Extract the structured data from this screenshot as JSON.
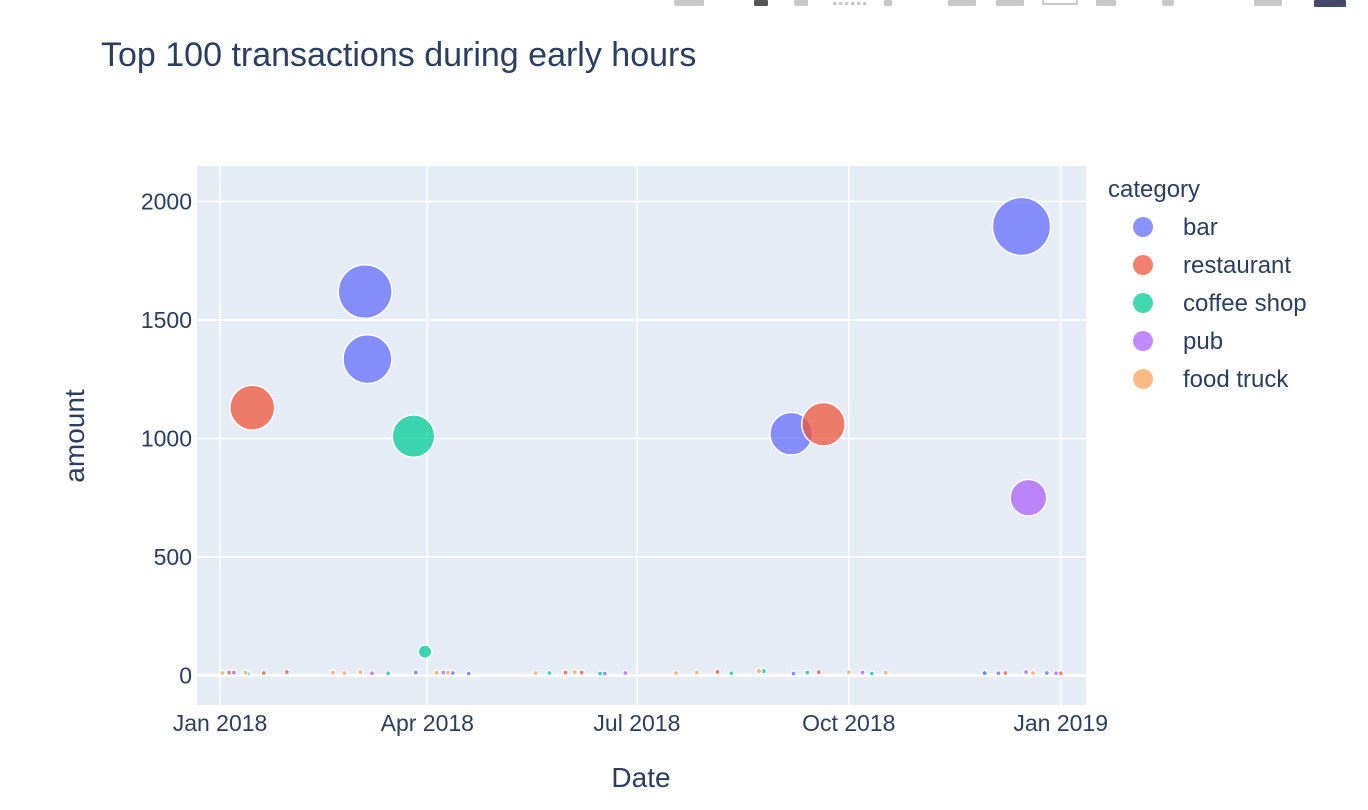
{
  "modebar": {
    "buttons": [
      "camera-icon",
      "zoom-icon",
      "pan-icon",
      "box-select-icon",
      "lasso-icon",
      "zoom-in-icon",
      "zoom-out-icon",
      "autoscale-icon",
      "reset-axes-icon",
      "spike-lines-icon",
      "hover-closest-icon",
      "hover-compare-icon",
      "plotly-logo-icon"
    ]
  },
  "colors": {
    "plot_bg": "#e5ecf6",
    "grid": "#ffffff",
    "text": "#2a3f5f",
    "bar": "#636efa",
    "restaurant": "#ef553b",
    "coffee shop": "#00cc96",
    "pub": "#ab63fa",
    "food truck": "#ffa15a"
  },
  "chart_data": {
    "type": "scatter",
    "title": "Top 100 transactions during early hours",
    "xlabel": "Date",
    "ylabel": "amount",
    "x_ticks": [
      "Jan 2018",
      "Apr 2018",
      "Jul 2018",
      "Oct 2018",
      "Jan 2019"
    ],
    "y_ticks": [
      0,
      500,
      1000,
      1500,
      2000
    ],
    "xlim": [
      "2017-12-22",
      "2019-01-12"
    ],
    "ylim": [
      -125,
      2150
    ],
    "grid": true,
    "legend": {
      "title": "category",
      "placement": "right"
    },
    "marker_size": "proportional to amount",
    "series": [
      {
        "name": "bar",
        "color": "#636efa",
        "points": [
          {
            "x": "2018-03-05",
            "y": 1620
          },
          {
            "x": "2018-03-06",
            "y": 1335
          },
          {
            "x": "2018-09-06",
            "y": 1020
          },
          {
            "x": "2018-12-15",
            "y": 1895
          },
          {
            "x": "2018-03-27",
            "y": 12
          },
          {
            "x": "2018-04-12",
            "y": 10
          },
          {
            "x": "2018-04-19",
            "y": 8
          },
          {
            "x": "2018-06-17",
            "y": 8
          },
          {
            "x": "2018-09-07",
            "y": 8
          },
          {
            "x": "2018-11-29",
            "y": 10
          },
          {
            "x": "2018-12-05",
            "y": 9
          },
          {
            "x": "2018-12-26",
            "y": 10
          }
        ]
      },
      {
        "name": "restaurant",
        "color": "#ef553b",
        "points": [
          {
            "x": "2018-01-15",
            "y": 1130
          },
          {
            "x": "2018-09-20",
            "y": 1060
          },
          {
            "x": "2018-01-05",
            "y": 12
          },
          {
            "x": "2018-01-20",
            "y": 10
          },
          {
            "x": "2018-01-30",
            "y": 14
          },
          {
            "x": "2018-05-31",
            "y": 12
          },
          {
            "x": "2018-06-07",
            "y": 12
          },
          {
            "x": "2018-08-05",
            "y": 15
          },
          {
            "x": "2018-09-18",
            "y": 14
          },
          {
            "x": "2018-12-08",
            "y": 10
          },
          {
            "x": "2019-01-01",
            "y": 9
          }
        ]
      },
      {
        "name": "coffee shop",
        "color": "#00cc96",
        "points": [
          {
            "x": "2018-03-26",
            "y": 1010
          },
          {
            "x": "2018-03-31",
            "y": 100
          },
          {
            "x": "2018-01-13",
            "y": 8
          },
          {
            "x": "2018-03-15",
            "y": 9
          },
          {
            "x": "2018-05-24",
            "y": 10
          },
          {
            "x": "2018-06-15",
            "y": 8
          },
          {
            "x": "2018-08-11",
            "y": 9
          },
          {
            "x": "2018-08-25",
            "y": 18
          },
          {
            "x": "2018-09-13",
            "y": 12
          },
          {
            "x": "2018-10-11",
            "y": 8
          },
          {
            "x": "2018-11-29",
            "y": 8
          }
        ]
      },
      {
        "name": "pub",
        "color": "#ab63fa",
        "points": [
          {
            "x": "2018-12-18",
            "y": 750
          },
          {
            "x": "2018-01-07",
            "y": 12
          },
          {
            "x": "2018-03-08",
            "y": 9
          },
          {
            "x": "2018-04-08",
            "y": 12
          },
          {
            "x": "2018-06-26",
            "y": 10
          },
          {
            "x": "2018-10-07",
            "y": 12
          },
          {
            "x": "2018-12-17",
            "y": 14
          },
          {
            "x": "2018-12-30",
            "y": 9
          }
        ]
      },
      {
        "name": "food truck",
        "color": "#ffa15a",
        "points": [
          {
            "x": "2018-01-02",
            "y": 10
          },
          {
            "x": "2018-01-12",
            "y": 12
          },
          {
            "x": "2018-02-19",
            "y": 12
          },
          {
            "x": "2018-02-24",
            "y": 10
          },
          {
            "x": "2018-03-03",
            "y": 14
          },
          {
            "x": "2018-04-05",
            "y": 11
          },
          {
            "x": "2018-04-10",
            "y": 12
          },
          {
            "x": "2018-05-18",
            "y": 10
          },
          {
            "x": "2018-06-04",
            "y": 14
          },
          {
            "x": "2018-07-18",
            "y": 10
          },
          {
            "x": "2018-07-27",
            "y": 12
          },
          {
            "x": "2018-08-23",
            "y": 18
          },
          {
            "x": "2018-10-01",
            "y": 14
          },
          {
            "x": "2018-10-17",
            "y": 12
          },
          {
            "x": "2018-12-20",
            "y": 10
          }
        ]
      }
    ]
  }
}
